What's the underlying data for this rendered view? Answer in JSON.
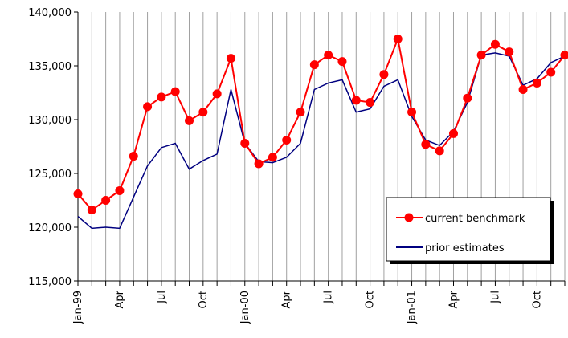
{
  "chart_data": {
    "type": "line",
    "categories": [
      "Jan-99",
      null,
      null,
      "Apr",
      null,
      null,
      "Jul",
      null,
      null,
      "Oct",
      null,
      null,
      "Jan-00",
      null,
      null,
      "Apr",
      null,
      null,
      "Jul",
      null,
      null,
      "Oct",
      null,
      null,
      "Jan-01",
      null,
      null,
      "Apr",
      null,
      null,
      "Jul",
      null,
      null,
      "Oct",
      null,
      null
    ],
    "series": [
      {
        "name": "current benchmark",
        "color": "#ff0000",
        "marker": true,
        "values": [
          123100,
          121600,
          122500,
          123400,
          126600,
          131200,
          132100,
          132600,
          129900,
          130700,
          132400,
          135700,
          127800,
          125900,
          126500,
          128100,
          130700,
          135100,
          136000,
          135400,
          131800,
          131600,
          134200,
          137500,
          130700,
          127700,
          127100,
          128700,
          132000,
          136000,
          137000,
          136300,
          132800,
          133400,
          134400,
          136000
        ]
      },
      {
        "name": "prior estimates",
        "color": "#000080",
        "marker": false,
        "values": [
          121000,
          119900,
          120000,
          119900,
          122800,
          125700,
          127400,
          127800,
          125400,
          126200,
          126800,
          132800,
          127800,
          126100,
          126000,
          126500,
          127800,
          132800,
          133400,
          133700,
          130700,
          131000,
          133100,
          133700,
          130300,
          128100,
          127600,
          128900,
          131600,
          136000,
          136200,
          135900,
          133200,
          133800,
          135300,
          135900
        ]
      }
    ],
    "ylim": [
      115000,
      140000
    ],
    "yticks": [
      {
        "value": 115000,
        "label": "115,000"
      },
      {
        "value": 120000,
        "label": "120,000"
      },
      {
        "value": 125000,
        "label": "125,000"
      },
      {
        "value": 130000,
        "label": "130,000"
      },
      {
        "value": 135000,
        "label": "135,000"
      },
      {
        "value": 140000,
        "label": "140,000"
      }
    ],
    "grid": "vertical"
  }
}
